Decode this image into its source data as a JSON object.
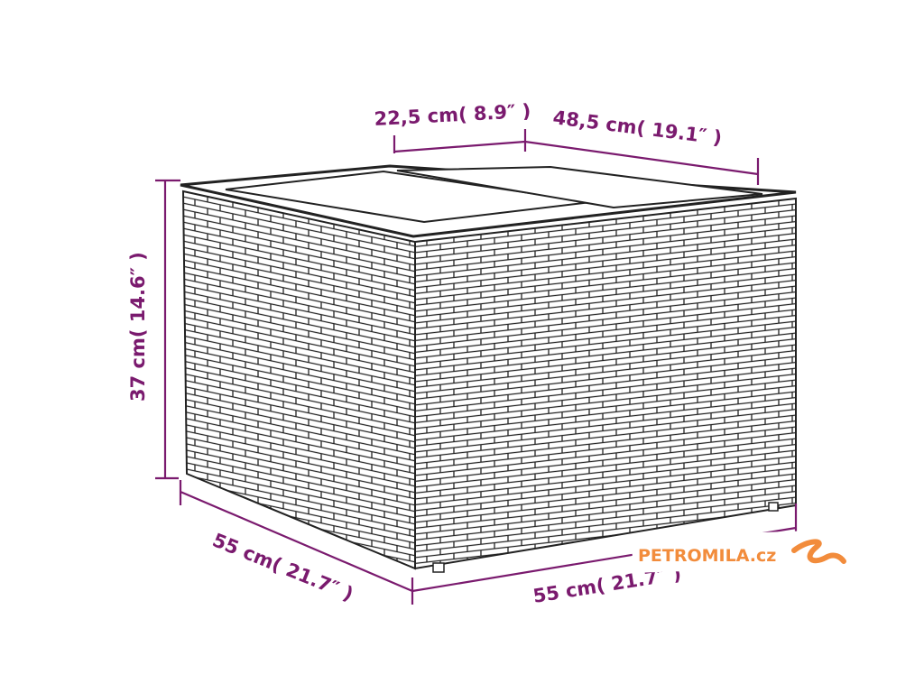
{
  "dimensions": {
    "lid_depth": "22,5 cm( 8.9″ )",
    "lid_width": "48,5 cm( 19.1″ )",
    "height": "37 cm( 14.6″ )",
    "depth": "55 cm( 21.7″ )",
    "width": "55 cm( 21.7″ )"
  },
  "watermark": {
    "text": "PETROMILA.cz"
  },
  "colors": {
    "dimension": "#7a1a6e",
    "watermark": "#f28c3c",
    "outline": "#222222"
  }
}
